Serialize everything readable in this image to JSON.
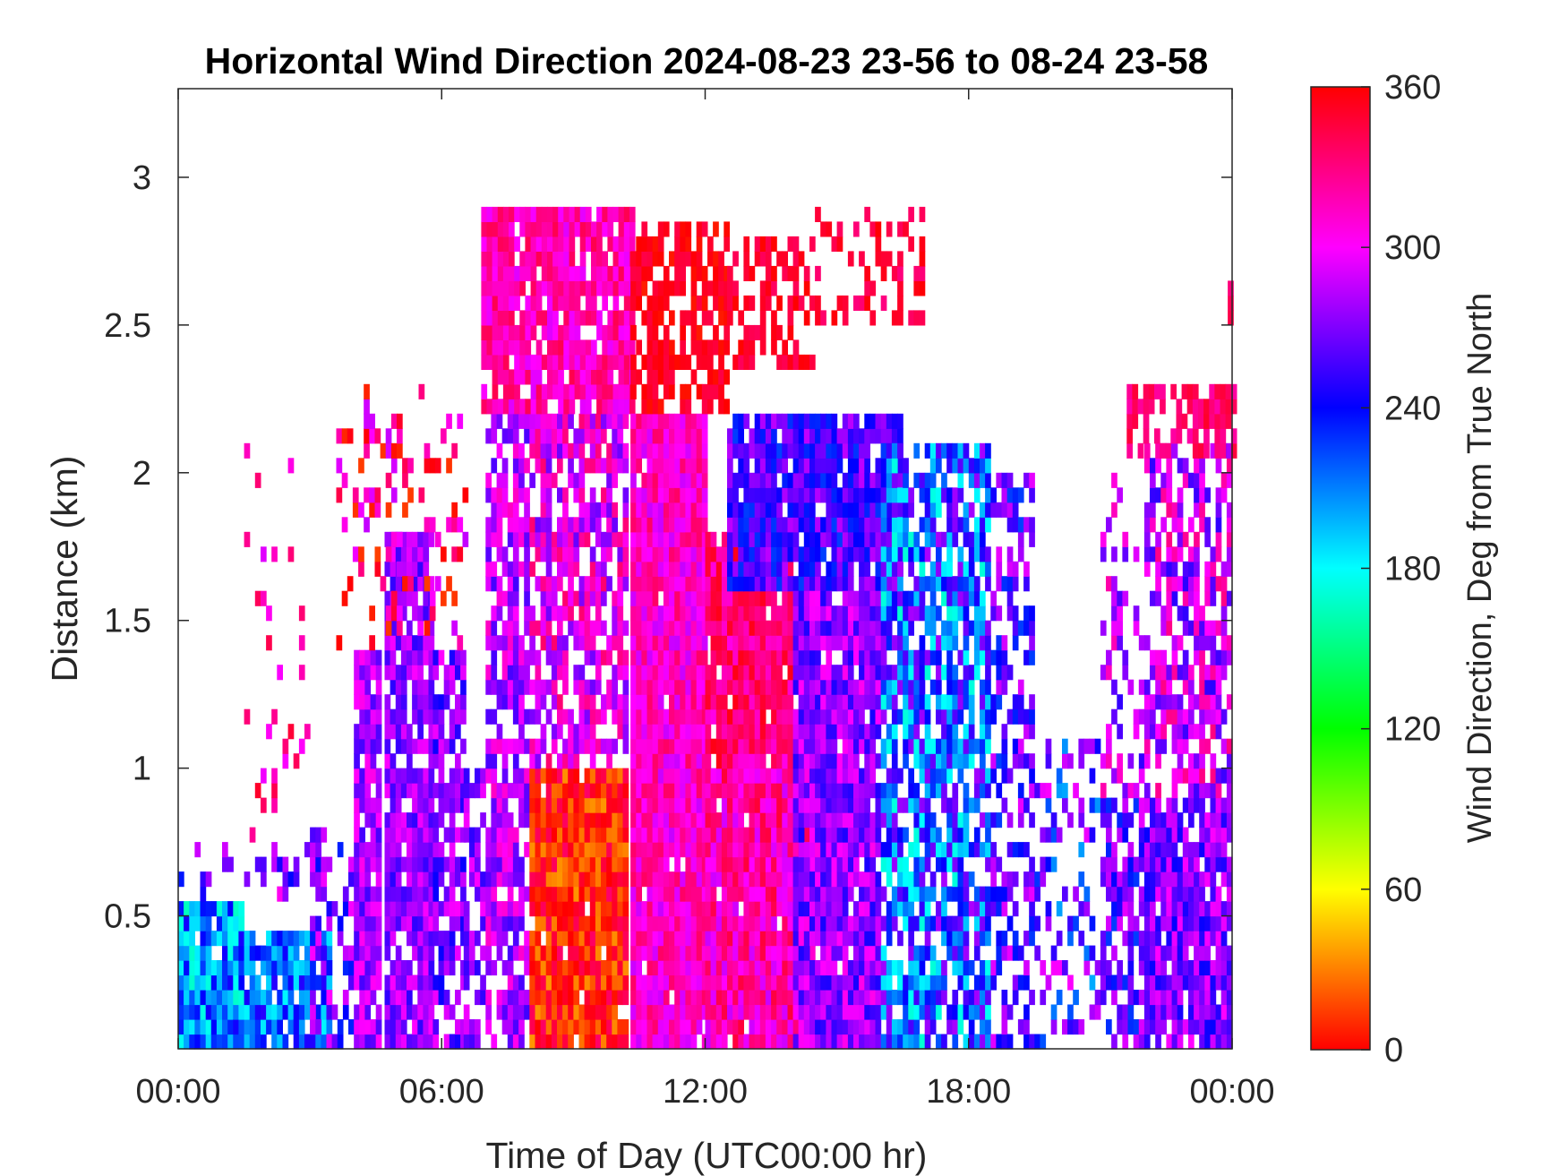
{
  "chart_data": {
    "type": "heatmap",
    "title": "Horizontal Wind Direction 2024-08-23 23-56 to 08-24 23-58",
    "xlabel": "Time of Day (UTC00:00 hr)",
    "ylabel": "Distance (km)",
    "xlim": [
      0,
      24
    ],
    "ylim": [
      0.05,
      3.3
    ],
    "x_ticks": [
      0,
      6,
      12,
      18,
      24
    ],
    "x_tick_labels": [
      "00:00",
      "06:00",
      "12:00",
      "18:00",
      "00:00"
    ],
    "y_ticks": [
      0.5,
      1,
      1.5,
      2,
      2.5,
      3
    ],
    "y_tick_labels": [
      "0.5",
      "1",
      "1.5",
      "2",
      "2.5",
      "3"
    ],
    "colorbar": {
      "label": "Wind Direction, Deg from True North",
      "range": [
        0,
        360
      ],
      "ticks": [
        0,
        60,
        120,
        180,
        240,
        300,
        360
      ],
      "tick_labels": [
        "0",
        "60",
        "120",
        "180",
        "240",
        "300",
        "360"
      ],
      "colormap": [
        "#ff0000",
        "#ffff00",
        "#00ff00",
        "#00ffff",
        "#0000ff",
        "#ff00ff",
        "#ff0000"
      ]
    },
    "grid": false,
    "time_step_hr": 0.125,
    "range_step_km": 0.05,
    "regions": [
      {
        "t": [
          0.0,
          1.5
        ],
        "h": [
          0.05,
          0.55
        ],
        "dir": 205,
        "spread": 40,
        "density": 0.95
      },
      {
        "t": [
          1.5,
          3.5
        ],
        "h": [
          0.05,
          0.45
        ],
        "dir": 215,
        "spread": 35,
        "density": 0.85
      },
      {
        "t": [
          0.0,
          3.0
        ],
        "h": [
          0.55,
          0.75
        ],
        "dir": 270,
        "spread": 40,
        "density": 0.25
      },
      {
        "t": [
          1.5,
          3.0
        ],
        "h": [
          0.75,
          2.1
        ],
        "dir": 320,
        "spread": 30,
        "density": 0.12
      },
      {
        "t": [
          3.0,
          4.0
        ],
        "h": [
          0.05,
          0.8
        ],
        "dir": 265,
        "spread": 35,
        "density": 0.45
      },
      {
        "t": [
          4.0,
          4.6
        ],
        "h": [
          0.05,
          1.4
        ],
        "dir": 280,
        "spread": 25,
        "density": 0.85
      },
      {
        "t": [
          4.7,
          5.8
        ],
        "h": [
          0.05,
          1.8
        ],
        "dir": 275,
        "spread": 25,
        "density": 0.85
      },
      {
        "t": [
          5.8,
          6.5
        ],
        "h": [
          0.05,
          1.4
        ],
        "dir": 270,
        "spread": 30,
        "density": 0.75
      },
      {
        "t": [
          3.6,
          6.5
        ],
        "h": [
          1.4,
          2.3
        ],
        "dir": 330,
        "spread": 45,
        "density": 0.25
      },
      {
        "t": [
          6.5,
          7.0
        ],
        "h": [
          0.05,
          1.0
        ],
        "dir": 275,
        "spread": 25,
        "density": 0.6
      },
      {
        "t": [
          7.0,
          8.0
        ],
        "h": [
          0.05,
          2.2
        ],
        "dir": 285,
        "spread": 30,
        "density": 0.75
      },
      {
        "t": [
          8.0,
          10.2
        ],
        "h": [
          0.05,
          1.0
        ],
        "dir": 5,
        "spread": 30,
        "density": 0.98
      },
      {
        "t": [
          8.0,
          10.2
        ],
        "h": [
          1.0,
          2.2
        ],
        "dir": 300,
        "spread": 35,
        "density": 0.7
      },
      {
        "t": [
          6.9,
          10.3
        ],
        "h": [
          2.2,
          2.9
        ],
        "dir": 318,
        "spread": 25,
        "density": 0.9
      },
      {
        "t": [
          10.3,
          12.0
        ],
        "h": [
          0.05,
          2.2
        ],
        "dir": 312,
        "spread": 25,
        "density": 0.98
      },
      {
        "t": [
          10.3,
          12.5
        ],
        "h": [
          2.2,
          2.85
        ],
        "dir": 355,
        "spread": 12,
        "density": 0.7
      },
      {
        "t": [
          12.5,
          14.5
        ],
        "h": [
          2.35,
          2.8
        ],
        "dir": 350,
        "spread": 12,
        "density": 0.5
      },
      {
        "t": [
          12.0,
          14.5
        ],
        "h": [
          0.05,
          1.0
        ],
        "dir": 318,
        "spread": 30,
        "density": 0.98
      },
      {
        "t": [
          12.0,
          14.0
        ],
        "h": [
          1.0,
          1.8
        ],
        "dir": 330,
        "spread": 25,
        "density": 0.95
      },
      {
        "t": [
          12.5,
          16.5
        ],
        "h": [
          1.6,
          2.2
        ],
        "dir": 255,
        "spread": 30,
        "density": 0.9
      },
      {
        "t": [
          14.0,
          16.0
        ],
        "h": [
          0.05,
          1.6
        ],
        "dir": 275,
        "spread": 30,
        "density": 0.95
      },
      {
        "t": [
          16.0,
          18.5
        ],
        "h": [
          0.05,
          2.1
        ],
        "dir": 225,
        "spread": 55,
        "density": 0.75
      },
      {
        "t": [
          14.5,
          17.0
        ],
        "h": [
          2.5,
          2.9
        ],
        "dir": 345,
        "spread": 15,
        "density": 0.3
      },
      {
        "t": [
          18.5,
          19.5
        ],
        "h": [
          0.05,
          2.0
        ],
        "dir": 260,
        "spread": 35,
        "density": 0.55
      },
      {
        "t": [
          19.5,
          21.0
        ],
        "h": [
          0.05,
          1.1
        ],
        "dir": 250,
        "spread": 50,
        "density": 0.35
      },
      {
        "t": [
          21.0,
          22.0
        ],
        "h": [
          0.05,
          0.9
        ],
        "dir": 260,
        "spread": 35,
        "density": 0.7
      },
      {
        "t": [
          21.0,
          22.0
        ],
        "h": [
          0.9,
          2.0
        ],
        "dir": 285,
        "spread": 35,
        "density": 0.3
      },
      {
        "t": [
          22.0,
          24.0
        ],
        "h": [
          0.05,
          0.9
        ],
        "dir": 270,
        "spread": 30,
        "density": 0.9
      },
      {
        "t": [
          22.0,
          24.0
        ],
        "h": [
          0.9,
          2.1
        ],
        "dir": 290,
        "spread": 40,
        "density": 0.65
      },
      {
        "t": [
          21.6,
          24.0
        ],
        "h": [
          2.05,
          2.3
        ],
        "dir": 335,
        "spread": 15,
        "density": 0.7
      },
      {
        "t": [
          23.9,
          24.0
        ],
        "h": [
          2.5,
          2.65
        ],
        "dir": 335,
        "spread": 10,
        "density": 0.8
      }
    ]
  }
}
